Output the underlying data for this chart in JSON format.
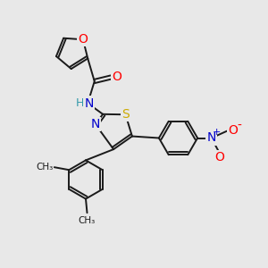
{
  "background_color": "#e8e8e8",
  "atom_colors": {
    "O": "#ff0000",
    "N": "#0000cc",
    "S": "#ccaa00",
    "H": "#3399aa",
    "C": "#000000",
    "N_plus": "#0000cc",
    "O_minus": "#ff0000"
  },
  "bond_color": "#1a1a1a",
  "bond_width": 1.4,
  "font_size_atoms": 10,
  "font_size_small": 8.5
}
